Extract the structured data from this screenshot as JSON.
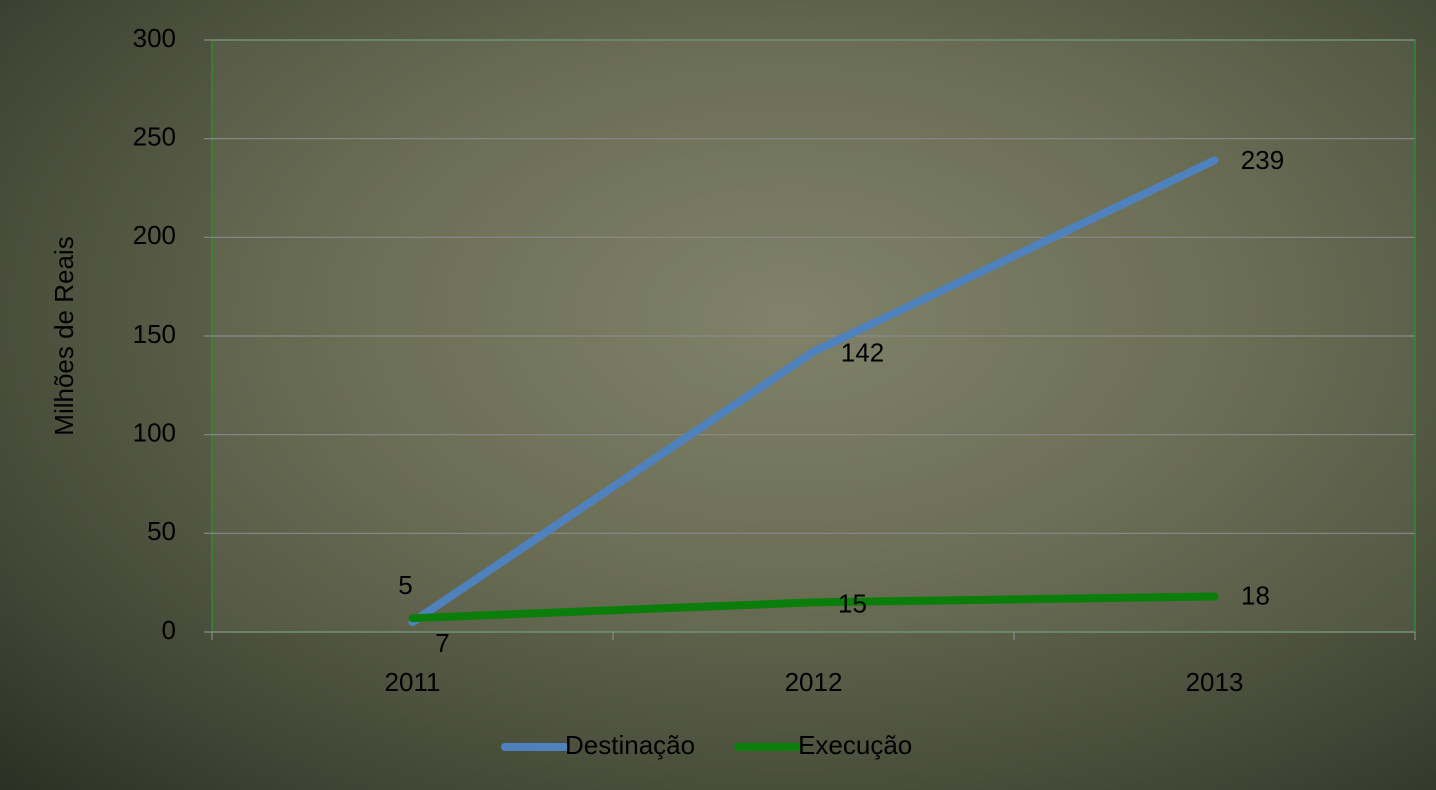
{
  "chart_data": {
    "type": "line",
    "y_label": "Milhões de Reais",
    "categories": [
      "2011",
      "2012",
      "2013"
    ],
    "series": [
      {
        "name": "Destinação",
        "color": "#4f81bd",
        "values": [
          5,
          142,
          239
        ]
      },
      {
        "name": "Execução",
        "color": "#0a7d0a",
        "values": [
          7,
          15,
          18
        ]
      }
    ],
    "ylim": [
      0,
      300
    ],
    "yticks": [
      0,
      50,
      100,
      150,
      200,
      250,
      300
    ],
    "grid": true,
    "legend": "bottom"
  }
}
